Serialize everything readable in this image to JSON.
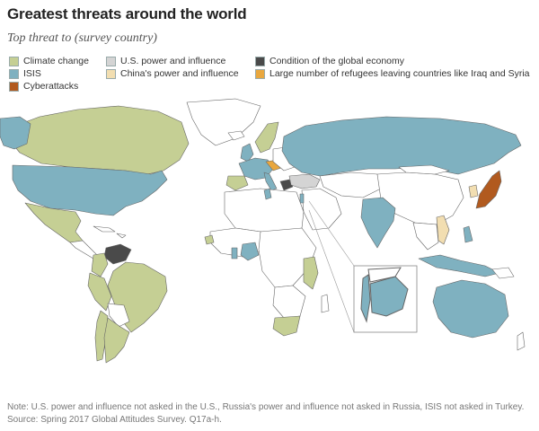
{
  "header": {
    "title": "Greatest threats around the world",
    "subtitle": "Top threat to (survey country)"
  },
  "legend": [
    {
      "label": "Climate change",
      "color": "#c5cf94"
    },
    {
      "label": "ISIS",
      "color": "#7fb1c0"
    },
    {
      "label": "Cyberattacks",
      "color": "#b15a1f"
    },
    {
      "label": "U.S. power and influence",
      "color": "#d4d4d4"
    },
    {
      "label": "China's power and influence",
      "color": "#f2deb1"
    },
    {
      "label": "Condition of the global economy",
      "color": "#4a4a4a"
    },
    {
      "label": "Large number of refugees leaving countries like Iraq and Syria",
      "color": "#e9a73e"
    }
  ],
  "colors": {
    "climate": "#c5cf94",
    "isis": "#7fb1c0",
    "cyber": "#b15a1f",
    "us_power": "#d4d4d4",
    "china_power": "#f2deb1",
    "economy": "#4a4a4a",
    "refugees": "#e9a73e",
    "not_surveyed": "#ffffff",
    "border": "#666666"
  },
  "footer": {
    "note": "Note: U.S. power and influence not asked in the U.S., Russia's power and influence not asked in Russia, ISIS not asked in Turkey.",
    "source": "Source: Spring 2017 Global Attitudes Survey. Q17a-h."
  }
}
